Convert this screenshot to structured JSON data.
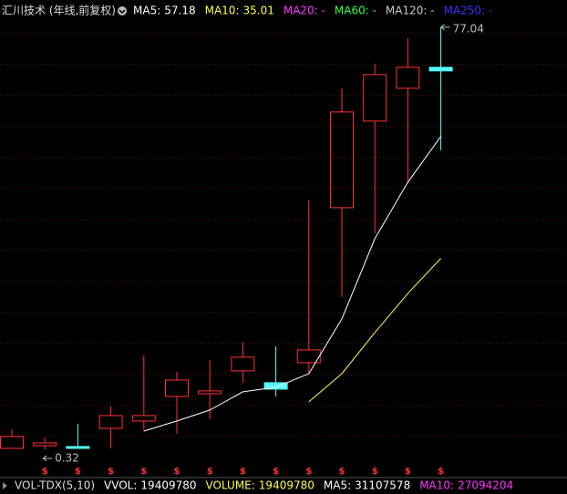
{
  "chart_data": {
    "type": "candlestick",
    "title": "汇川技术 (年线,前复权)",
    "categories": [
      null,
      null,
      null,
      null,
      null,
      null,
      null,
      null,
      null,
      null,
      null,
      null,
      null,
      null
    ],
    "open": [
      0.49,
      0.98,
      0.82,
      4.13,
      5.46,
      9.93,
      10.43,
      14.57,
      12.42,
      16.06,
      44.23,
      59.97,
      65.94,
      69.75
    ],
    "high": [
      3.97,
      2.47,
      4.96,
      8.11,
      17.39,
      14.41,
      16.56,
      19.87,
      19.04,
      45.56,
      65.94,
      70.41,
      75.05,
      77.04
    ],
    "low": [
      0.49,
      0.32,
      0.49,
      0.49,
      3.8,
      3.14,
      5.79,
      12.42,
      9.93,
      14.07,
      27.99,
      39.59,
      48.87,
      54.67
    ],
    "close": [
      2.64,
      1.48,
      0.65,
      6.45,
      6.45,
      12.91,
      10.93,
      17.06,
      11.26,
      18.38,
      61.63,
      68.42,
      69.75,
      69.09
    ],
    "up_color": "#ff3232",
    "down_color": "#54ffff",
    "ylim": [
      -3,
      79
    ],
    "series": [
      {
        "name": "MA5:",
        "color": "#ffffff",
        "values": [
          null,
          null,
          null,
          null,
          3.63,
          5.46,
          7.45,
          10.76,
          11.59,
          14.07,
          24.02,
          38.6,
          48.87,
          57.18
        ]
      },
      {
        "name": "MA10:",
        "color": "#ffff54",
        "values": [
          null,
          null,
          null,
          null,
          null,
          null,
          null,
          null,
          null,
          8.94,
          14.07,
          21.53,
          28.66,
          35.01
        ]
      }
    ],
    "legend_extra": [
      {
        "text": "MA20: -",
        "color": "#ff33ff"
      },
      {
        "text": "MA60: -",
        "color": "#33ff33"
      },
      {
        "text": "MA120: -",
        "color": "#cccccc"
      },
      {
        "text": "MA250: -",
        "color": "#3333ff"
      }
    ],
    "event_markers": [
      null,
      "$",
      "$",
      "$",
      "$",
      "$",
      "$",
      "$",
      "$",
      "$",
      "$",
      "$",
      "$",
      "$"
    ],
    "volume_bar": {
      "title": "VOL-TDX(5,10)",
      "items": [
        {
          "label": "VVOL:",
          "value": 19409780,
          "color": "#ffffff"
        },
        {
          "label": "VOLUME:",
          "value": 19409780,
          "color": "#ffff54"
        },
        {
          "label": "MA5:",
          "value": 31107578,
          "color": "#ffffff"
        },
        {
          "label": "MA10:",
          "value": 27094204,
          "color": "#ff33ff"
        }
      ]
    }
  }
}
